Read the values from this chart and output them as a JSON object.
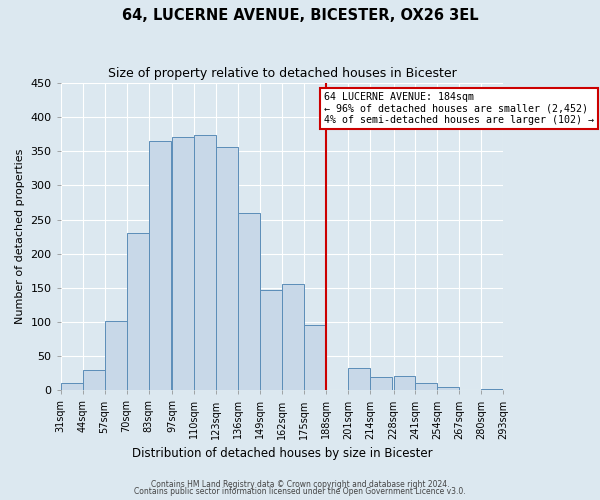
{
  "title": "64, LUCERNE AVENUE, BICESTER, OX26 3EL",
  "subtitle": "Size of property relative to detached houses in Bicester",
  "xlabel": "Distribution of detached houses by size in Bicester",
  "ylabel": "Number of detached properties",
  "bin_labels": [
    "31sqm",
    "44sqm",
    "57sqm",
    "70sqm",
    "83sqm",
    "97sqm",
    "110sqm",
    "123sqm",
    "136sqm",
    "149sqm",
    "162sqm",
    "175sqm",
    "188sqm",
    "201sqm",
    "214sqm",
    "228sqm",
    "241sqm",
    "254sqm",
    "267sqm",
    "280sqm",
    "293sqm"
  ],
  "bar_heights": [
    10,
    30,
    101,
    230,
    365,
    371,
    374,
    357,
    260,
    147,
    155,
    95,
    0,
    33,
    20,
    21,
    11,
    5,
    0,
    2
  ],
  "bar_color": "#c8d8e8",
  "bar_edge_color": "#5b8db8",
  "vline_x": 188,
  "vline_color": "#cc0000",
  "annotation_title": "64 LUCERNE AVENUE: 184sqm",
  "annotation_line1": "← 96% of detached houses are smaller (2,452)",
  "annotation_line2": "4% of semi-detached houses are larger (102) →",
  "annotation_box_color": "#cc0000",
  "ylim": [
    0,
    450
  ],
  "yticks": [
    0,
    50,
    100,
    150,
    200,
    250,
    300,
    350,
    400,
    450
  ],
  "footer1": "Contains HM Land Registry data © Crown copyright and database right 2024.",
  "footer2": "Contains public sector information licensed under the Open Government Licence v3.0.",
  "background_color": "#dce8f0",
  "grid_color": "#ffffff",
  "bin_starts": [
    31,
    44,
    57,
    70,
    83,
    97,
    110,
    123,
    136,
    149,
    162,
    175,
    188,
    201,
    214,
    228,
    241,
    254,
    267,
    280
  ],
  "bin_width": 13
}
